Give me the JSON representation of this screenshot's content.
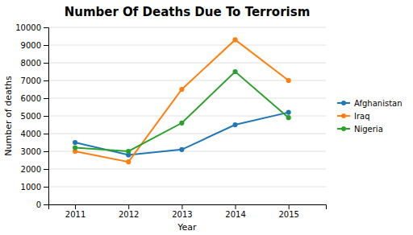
{
  "chart_data": {
    "type": "line",
    "title": "Number Of Deaths Due To Terrorism",
    "xlabel": "Year",
    "ylabel": "Number of deaths",
    "x": [
      2011,
      2012,
      2013,
      2014,
      2015
    ],
    "series": [
      {
        "name": "Afghanistan",
        "values": [
          3500,
          2800,
          3100,
          4500,
          5200
        ]
      },
      {
        "name": "Iraq",
        "values": [
          3000,
          2400,
          6500,
          9300,
          7000
        ]
      },
      {
        "name": "Nigeria",
        "values": [
          3200,
          3000,
          4600,
          7500,
          4900
        ]
      }
    ],
    "marker": "circle",
    "xlim": [
      2010.5,
      2015.7
    ],
    "xticks": [
      2011,
      2012,
      2013,
      2014,
      2015
    ],
    "ylim": [
      0,
      10000
    ],
    "yticks": [
      0,
      1000,
      2000,
      3000,
      4000,
      5000,
      6000,
      7000,
      8000,
      9000,
      10000
    ],
    "grid": "y",
    "legend": "right"
  }
}
